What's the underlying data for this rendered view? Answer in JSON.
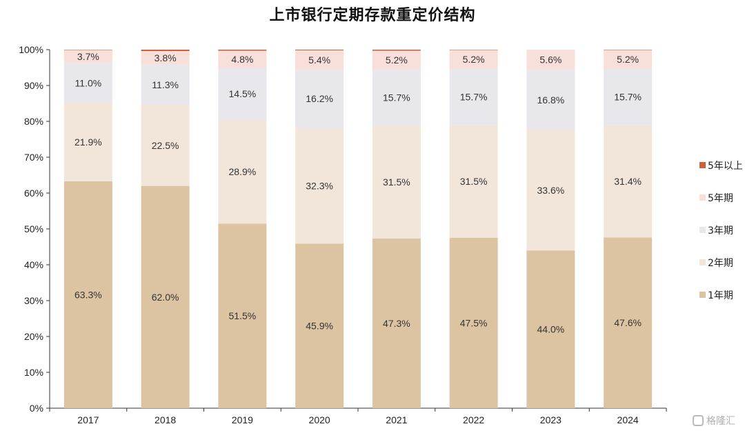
{
  "chart_data": {
    "type": "bar",
    "stacked": true,
    "title": "上市银行定期存款重定价结构",
    "categories": [
      "2017",
      "2018",
      "2019",
      "2020",
      "2021",
      "2022",
      "2023",
      "2024"
    ],
    "ylim": [
      0,
      100
    ],
    "yticks": [
      "0%",
      "10%",
      "20%",
      "30%",
      "40%",
      "50%",
      "60%",
      "70%",
      "80%",
      "90%",
      "100%"
    ],
    "series": [
      {
        "name": "1年期",
        "color": "#dcc4a3",
        "values": [
          63.3,
          62.0,
          51.5,
          45.9,
          47.3,
          47.5,
          44.0,
          47.6
        ],
        "labels": [
          "63.3%",
          "62.0%",
          "51.5%",
          "45.9%",
          "47.3%",
          "47.5%",
          "44.0%",
          "47.6%"
        ]
      },
      {
        "name": "2年期",
        "color": "#f2e6da",
        "values": [
          21.9,
          22.5,
          28.9,
          32.3,
          31.5,
          31.5,
          33.6,
          31.4
        ],
        "labels": [
          "21.9%",
          "22.5%",
          "28.9%",
          "32.3%",
          "31.5%",
          "31.5%",
          "33.6%",
          "31.4%"
        ]
      },
      {
        "name": "3年期",
        "color": "#e7e7ec",
        "values": [
          11.0,
          11.3,
          14.5,
          16.2,
          15.7,
          15.7,
          16.8,
          15.7
        ],
        "labels": [
          "11.0%",
          "11.3%",
          "14.5%",
          "16.2%",
          "15.7%",
          "15.7%",
          "16.8%",
          "15.7%"
        ]
      },
      {
        "name": "5年期",
        "color": "#f8dfd9",
        "values": [
          3.7,
          3.8,
          4.8,
          5.4,
          5.2,
          5.2,
          5.6,
          5.2
        ],
        "labels": [
          "3.7%",
          "3.8%",
          "4.8%",
          "5.4%",
          "5.2%",
          "5.2%",
          "5.6%",
          "5.2%"
        ]
      },
      {
        "name": "5年以上",
        "color": "#c8623b",
        "values": [
          0.1,
          0.4,
          0.3,
          0.2,
          0.3,
          0.1,
          0.0,
          0.1
        ]
      }
    ],
    "legend_position": "right",
    "grid": false
  },
  "watermark": {
    "text": "格隆汇"
  }
}
